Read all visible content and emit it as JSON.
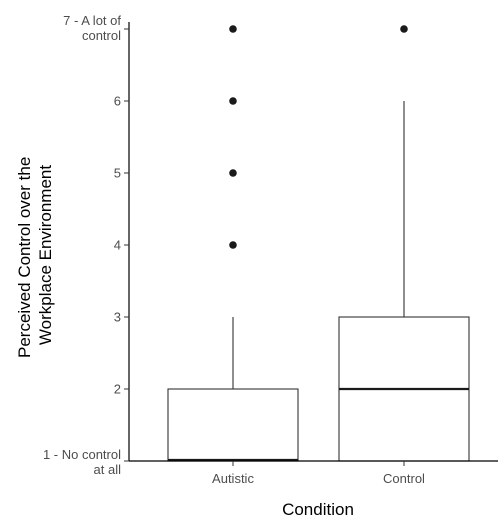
{
  "chart_data": {
    "type": "boxplot",
    "title": "",
    "xlabel": "Condition",
    "ylabel_lines": [
      "Perceived Control over the",
      "Workplace Environment"
    ],
    "ylim": [
      1,
      7
    ],
    "yticks": [
      {
        "value": 1,
        "lines": [
          "1 - No control",
          "at all"
        ]
      },
      {
        "value": 2,
        "lines": [
          "2"
        ]
      },
      {
        "value": 3,
        "lines": [
          "3"
        ]
      },
      {
        "value": 4,
        "lines": [
          "4"
        ]
      },
      {
        "value": 5,
        "lines": [
          "5"
        ]
      },
      {
        "value": 6,
        "lines": [
          "6"
        ]
      },
      {
        "value": 7,
        "lines": [
          "7 - A lot of",
          "control"
        ]
      }
    ],
    "categories": [
      "Autistic",
      "Control"
    ],
    "boxes": [
      {
        "category": "Autistic",
        "whisker_low": 1,
        "q1": 1,
        "median": 1,
        "q3": 2,
        "whisker_high": 3,
        "outliers": [
          4,
          5,
          6,
          7
        ]
      },
      {
        "category": "Control",
        "whisker_low": 1,
        "q1": 1,
        "median": 2,
        "q3": 3,
        "whisker_high": 6,
        "outliers": [
          7
        ]
      }
    ],
    "grid": false,
    "legend": "none",
    "colors": {
      "box_fill": "#ffffff",
      "box_stroke": "#333333",
      "point": "#1a1a1a"
    }
  }
}
